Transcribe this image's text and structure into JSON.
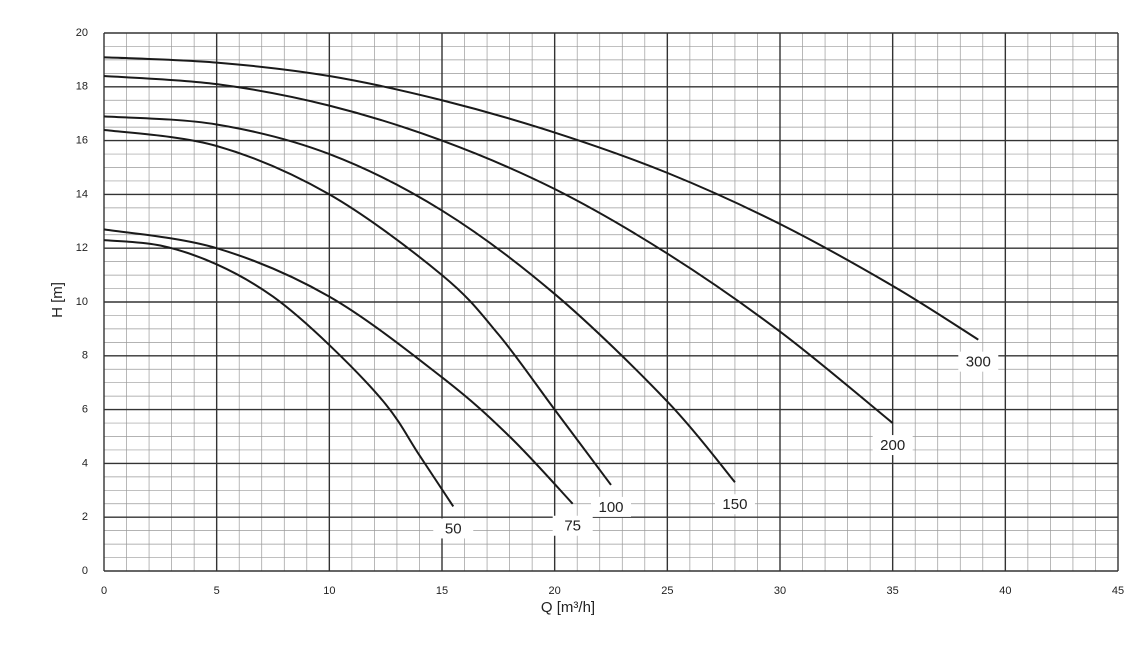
{
  "chart_data": {
    "type": "line",
    "x_label": "Q [m³/h]",
    "y_label": "H [m]",
    "xlim": [
      0,
      45
    ],
    "ylim": [
      0,
      20
    ],
    "xticks": [
      0,
      5,
      10,
      15,
      20,
      25,
      30,
      35,
      40,
      45
    ],
    "yticks": [
      0,
      2,
      4,
      6,
      8,
      10,
      12,
      14,
      16,
      18,
      20
    ],
    "grid": true,
    "minor_grid": true,
    "color": "#1a1a1a",
    "series": [
      {
        "name": "50",
        "x": [
          0,
          2.5,
          5,
          7.5,
          10,
          12.5,
          14,
          15.5
        ],
        "values": [
          12.3,
          12.1,
          11.4,
          10.2,
          8.4,
          6.2,
          4.3,
          2.4
        ]
      },
      {
        "name": "75",
        "x": [
          0,
          5,
          10,
          15,
          18,
          20.8
        ],
        "values": [
          12.7,
          12.0,
          10.2,
          7.2,
          5.0,
          2.5
        ]
      },
      {
        "name": "100",
        "x": [
          0,
          5,
          10,
          15,
          17.5,
          20,
          22.5
        ],
        "values": [
          16.4,
          15.8,
          14.0,
          11.0,
          8.8,
          6.0,
          3.2
        ]
      },
      {
        "name": "150",
        "x": [
          0,
          5,
          10,
          15,
          20,
          25,
          28
        ],
        "values": [
          16.9,
          16.6,
          15.5,
          13.4,
          10.3,
          6.3,
          3.3
        ]
      },
      {
        "name": "200",
        "x": [
          0,
          5,
          10,
          15,
          20,
          25,
          30,
          35
        ],
        "values": [
          18.4,
          18.1,
          17.3,
          16.0,
          14.2,
          11.8,
          8.9,
          5.5
        ]
      },
      {
        "name": "300",
        "x": [
          0,
          5,
          10,
          15,
          20,
          25,
          30,
          35,
          38.8
        ],
        "values": [
          19.1,
          18.9,
          18.4,
          17.5,
          16.3,
          14.8,
          12.9,
          10.6,
          8.6
        ]
      }
    ]
  }
}
